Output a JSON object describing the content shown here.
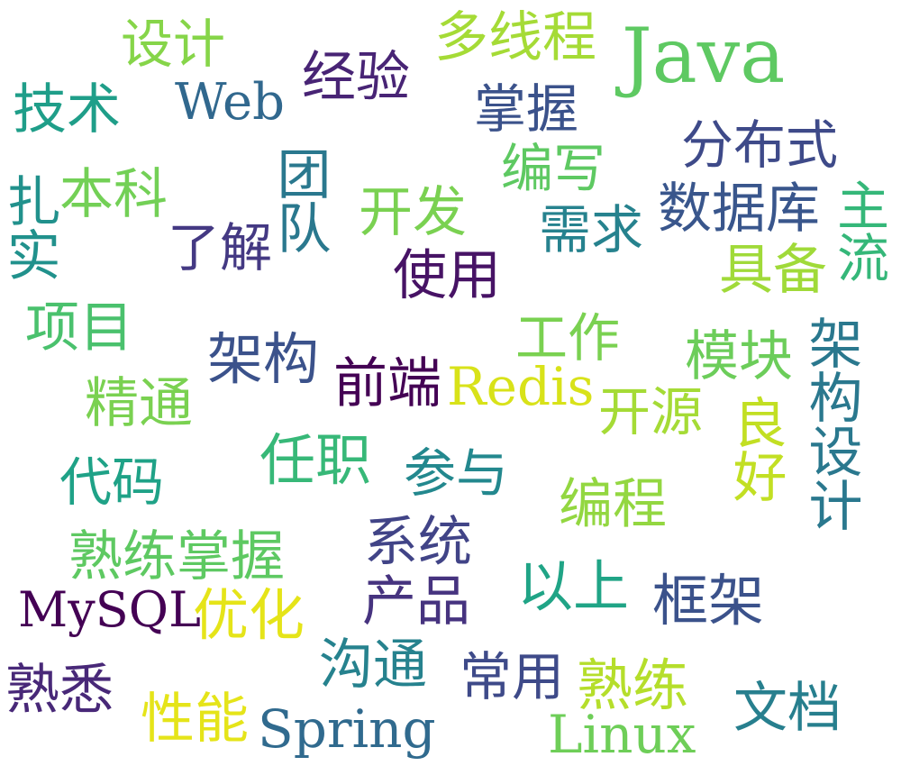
{
  "words": [
    {
      "text": "设计",
      "color": "#86d549"
    },
    {
      "text": "多线程",
      "color": "#a5db36"
    },
    {
      "text": "Java",
      "color": "#5ec962"
    },
    {
      "text": "技术",
      "color": "#1f9e89"
    },
    {
      "text": "Web",
      "color": "#31688e"
    },
    {
      "text": "经验",
      "color": "#482475"
    },
    {
      "text": "掌握",
      "color": "#3b528b"
    },
    {
      "text": "分布式",
      "color": "#3e4a89"
    },
    {
      "text": "扎实",
      "color": "#21918c"
    },
    {
      "text": "本科",
      "color": "#73d056"
    },
    {
      "text": "团队",
      "color": "#2a788e"
    },
    {
      "text": "编写",
      "color": "#5ec962"
    },
    {
      "text": "开发",
      "color": "#7ad151"
    },
    {
      "text": "了解",
      "color": "#443983"
    },
    {
      "text": "需求",
      "color": "#26828e"
    },
    {
      "text": "数据库",
      "color": "#39568c"
    },
    {
      "text": "主流",
      "color": "#35b779"
    },
    {
      "text": "使用",
      "color": "#471365"
    },
    {
      "text": "具备",
      "color": "#a0da39"
    },
    {
      "text": "项目",
      "color": "#4ac16d"
    },
    {
      "text": "工作",
      "color": "#7ad151"
    },
    {
      "text": "架构",
      "color": "#3b528b"
    },
    {
      "text": "模块",
      "color": "#6ccd5a"
    },
    {
      "text": "前端",
      "color": "#440154"
    },
    {
      "text": "Redis",
      "color": "#d8e219"
    },
    {
      "text": "精通",
      "color": "#7ad151"
    },
    {
      "text": "开源",
      "color": "#a5db36"
    },
    {
      "text": "良好",
      "color": "#c2df23"
    },
    {
      "text": "架构设计",
      "color": "#2a788e"
    },
    {
      "text": "任职",
      "color": "#37b878"
    },
    {
      "text": "参与",
      "color": "#23888e"
    },
    {
      "text": "代码",
      "color": "#1fa287"
    },
    {
      "text": "编程",
      "color": "#93d741"
    },
    {
      "text": "熟练掌握",
      "color": "#5ec962"
    },
    {
      "text": "系统",
      "color": "#414487"
    },
    {
      "text": "MySQL",
      "color": "#440154"
    },
    {
      "text": "优化",
      "color": "#e5e419"
    },
    {
      "text": "产品",
      "color": "#46337f"
    },
    {
      "text": "以上",
      "color": "#20a486"
    },
    {
      "text": "框架",
      "color": "#3b528b"
    },
    {
      "text": "沟通",
      "color": "#26828e"
    },
    {
      "text": "常用",
      "color": "#3e4a89"
    },
    {
      "text": "熟练",
      "color": "#b5de2b"
    },
    {
      "text": "熟悉",
      "color": "#482878"
    },
    {
      "text": "文档",
      "color": "#277f8e"
    },
    {
      "text": "性能",
      "color": "#e5e419"
    },
    {
      "text": "Spring",
      "color": "#306a8e"
    },
    {
      "text": "Linux",
      "color": "#6ece58"
    }
  ]
}
